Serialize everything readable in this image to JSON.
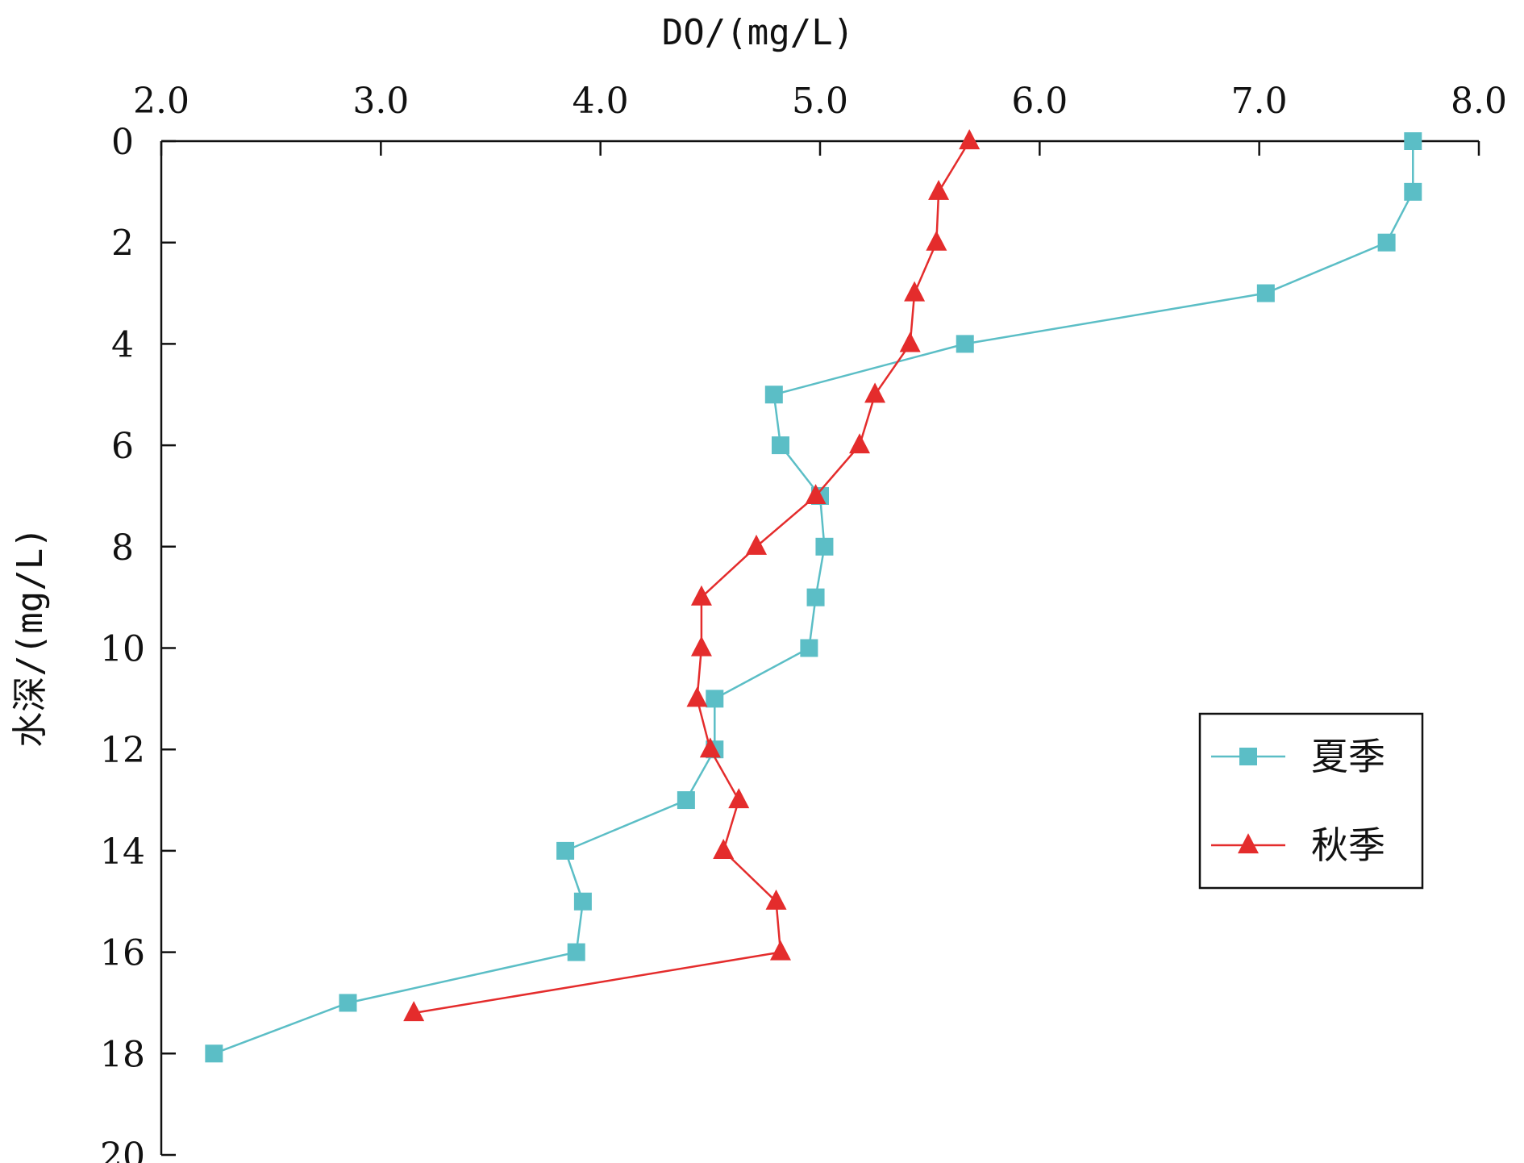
{
  "chart_data": {
    "type": "line",
    "xlabel": "DO/(mg/L)",
    "ylabel": "水深/(mg/L)",
    "xlim": [
      2.0,
      8.0
    ],
    "ylim": [
      0,
      20
    ],
    "x_axis_position": "top",
    "y_axis_inverted": true,
    "grid": false,
    "legend_position": "right",
    "x_ticks": [
      {
        "value": 2.0,
        "label": "2.0"
      },
      {
        "value": 3.0,
        "label": "3.0"
      },
      {
        "value": 4.0,
        "label": "4.0"
      },
      {
        "value": 5.0,
        "label": "5.0"
      },
      {
        "value": 6.0,
        "label": "6.0"
      },
      {
        "value": 7.0,
        "label": "7.0"
      },
      {
        "value": 8.0,
        "label": "8.0"
      }
    ],
    "y_ticks": [
      {
        "value": 0,
        "label": "0"
      },
      {
        "value": 2,
        "label": "2"
      },
      {
        "value": 4,
        "label": "4"
      },
      {
        "value": 6,
        "label": "6"
      },
      {
        "value": 8,
        "label": "8"
      },
      {
        "value": 10,
        "label": "10"
      },
      {
        "value": 12,
        "label": "12"
      },
      {
        "value": 14,
        "label": "14"
      },
      {
        "value": 16,
        "label": "16"
      },
      {
        "value": 18,
        "label": "18"
      },
      {
        "value": 20,
        "label": "20"
      }
    ],
    "series": [
      {
        "name": "夏季",
        "color": "#5bbec6",
        "marker": "square",
        "points": [
          {
            "x": 7.7,
            "y": 0
          },
          {
            "x": 7.7,
            "y": 1
          },
          {
            "x": 7.58,
            "y": 2
          },
          {
            "x": 7.03,
            "y": 3
          },
          {
            "x": 5.66,
            "y": 4
          },
          {
            "x": 4.79,
            "y": 5
          },
          {
            "x": 4.82,
            "y": 6
          },
          {
            "x": 5.0,
            "y": 7
          },
          {
            "x": 5.02,
            "y": 8
          },
          {
            "x": 4.98,
            "y": 9
          },
          {
            "x": 4.95,
            "y": 10
          },
          {
            "x": 4.52,
            "y": 11
          },
          {
            "x": 4.52,
            "y": 12
          },
          {
            "x": 4.39,
            "y": 13
          },
          {
            "x": 3.84,
            "y": 14
          },
          {
            "x": 3.92,
            "y": 15
          },
          {
            "x": 3.89,
            "y": 16
          },
          {
            "x": 2.85,
            "y": 17
          },
          {
            "x": 2.24,
            "y": 18
          }
        ]
      },
      {
        "name": "秋季",
        "color": "#e42c2c",
        "marker": "triangle",
        "points": [
          {
            "x": 5.68,
            "y": 0
          },
          {
            "x": 5.54,
            "y": 1
          },
          {
            "x": 5.53,
            "y": 2
          },
          {
            "x": 5.43,
            "y": 3
          },
          {
            "x": 5.41,
            "y": 4
          },
          {
            "x": 5.25,
            "y": 5
          },
          {
            "x": 5.18,
            "y": 6
          },
          {
            "x": 4.98,
            "y": 7
          },
          {
            "x": 4.71,
            "y": 8
          },
          {
            "x": 4.46,
            "y": 9
          },
          {
            "x": 4.46,
            "y": 10
          },
          {
            "x": 4.44,
            "y": 11
          },
          {
            "x": 4.5,
            "y": 12
          },
          {
            "x": 4.63,
            "y": 13
          },
          {
            "x": 4.56,
            "y": 14
          },
          {
            "x": 4.8,
            "y": 15
          },
          {
            "x": 4.82,
            "y": 16
          },
          {
            "x": 3.15,
            "y": 17.2
          }
        ]
      }
    ]
  }
}
